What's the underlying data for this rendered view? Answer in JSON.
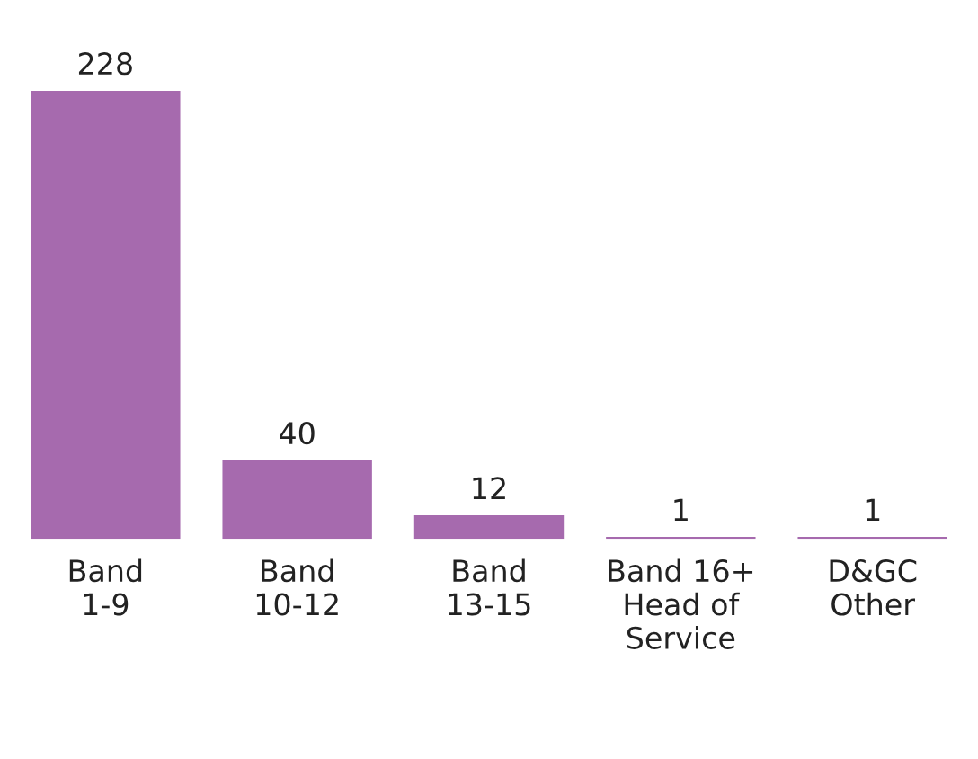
{
  "chart_data": {
    "type": "bar",
    "categories": [
      "Band\n1-9",
      "Band\n10-12",
      "Band\n13-15",
      "Band 16+\nHead of\nService",
      "D&GC\nOther"
    ],
    "values": [
      228,
      40,
      12,
      1,
      1
    ],
    "color": "#a66aae",
    "data_labels": true,
    "grid": false,
    "legend": false
  }
}
